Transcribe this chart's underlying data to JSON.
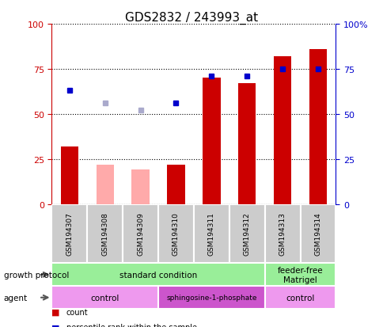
{
  "title": "GDS2832 / 243993_at",
  "samples": [
    "GSM194307",
    "GSM194308",
    "GSM194309",
    "GSM194310",
    "GSM194311",
    "GSM194312",
    "GSM194313",
    "GSM194314"
  ],
  "count_values": [
    32,
    null,
    null,
    22,
    70,
    67,
    82,
    86
  ],
  "count_absent_values": [
    null,
    22,
    19,
    null,
    null,
    null,
    null,
    null
  ],
  "rank_values": [
    63,
    null,
    null,
    56,
    71,
    71,
    75,
    75
  ],
  "rank_absent_values": [
    null,
    56,
    52,
    null,
    null,
    null,
    null,
    null
  ],
  "count_color": "#cc0000",
  "count_absent_color": "#ffaaaa",
  "rank_color": "#0000cc",
  "rank_absent_color": "#aaaacc",
  "growth_protocol_groups": [
    {
      "label": "standard condition",
      "start": 0,
      "end": 6,
      "color": "#99ee99"
    },
    {
      "label": "feeder-free\nMatrigel",
      "start": 6,
      "end": 8,
      "color": "#99ee99"
    }
  ],
  "agent_groups": [
    {
      "label": "control",
      "start": 0,
      "end": 3,
      "color": "#ee99ee"
    },
    {
      "label": "sphingosine-1-phosphate",
      "start": 3,
      "end": 6,
      "color": "#cc55cc"
    },
    {
      "label": "control",
      "start": 6,
      "end": 8,
      "color": "#ee99ee"
    }
  ],
  "ylim": [
    0,
    100
  ],
  "yticks": [
    0,
    25,
    50,
    75,
    100
  ],
  "title_fontsize": 11
}
